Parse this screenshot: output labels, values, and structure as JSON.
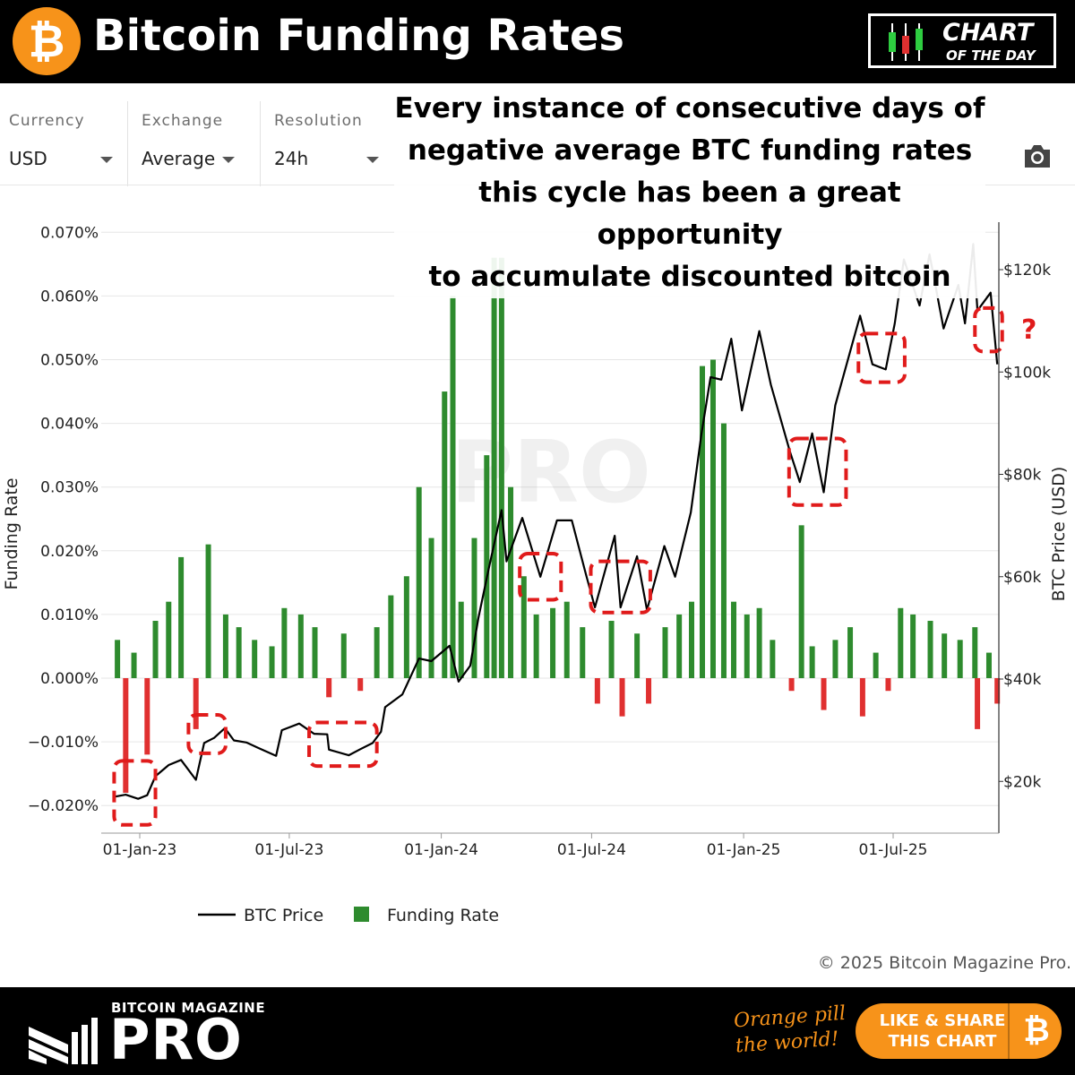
{
  "header": {
    "logo_glyph": "₿",
    "title": "Bitcoin Funding Rates",
    "badge_line1": "CHART",
    "badge_line2": "OF THE DAY",
    "badge_icon": "candlestick-icon"
  },
  "controls": [
    {
      "label": "Currency",
      "value": "USD"
    },
    {
      "label": "Exchange",
      "value": "Average"
    },
    {
      "label": "Resolution",
      "value": "24h"
    }
  ],
  "toolbar": {
    "camera_icon": "camera-icon"
  },
  "headline": {
    "lines": [
      "Every instance of consecutive days of",
      "negative average BTC funding rates",
      "this cycle has been a great opportunity",
      "to accumulate discounted bitcoin"
    ]
  },
  "chart_data": {
    "type": "bar+line",
    "xlabel": "",
    "ylabel": "Funding Rate",
    "y2label": "BTC Price (USD)",
    "x_ticks": [
      "01-Jan-23",
      "01-Jul-23",
      "01-Jan-24",
      "01-Jul-24",
      "01-Jan-25",
      "01-Jul-25"
    ],
    "y_ticks": [
      "0.070%",
      "0.060%",
      "0.050%",
      "0.040%",
      "0.030%",
      "0.020%",
      "0.010%",
      "0.000%",
      "−0.010%",
      "−0.020%"
    ],
    "y2_ticks": [
      "$120k",
      "$100k",
      "$80k",
      "$60k",
      "$40k",
      "$20k"
    ],
    "ylim": [
      -0.021,
      0.07
    ],
    "y2lim": [
      8000,
      128000
    ],
    "xlim": [
      "2022-12-01",
      "2025-11-10"
    ],
    "grid": true,
    "legend_position": "bottom-center",
    "watermark": "BITCOIN MAGAZINE PRO",
    "series": [
      {
        "name": "BTC Price",
        "color": "#000000",
        "axis": "right",
        "points": [
          [
            "2022-12-01",
            17000
          ],
          [
            "2022-12-15",
            17400
          ],
          [
            "2022-12-30",
            16600
          ],
          [
            "2023-01-10",
            17300
          ],
          [
            "2023-01-20",
            21000
          ],
          [
            "2023-02-05",
            23200
          ],
          [
            "2023-02-20",
            24200
          ],
          [
            "2023-03-10",
            20300
          ],
          [
            "2023-03-20",
            27500
          ],
          [
            "2023-04-01",
            28500
          ],
          [
            "2023-04-14",
            30400
          ],
          [
            "2023-04-25",
            28000
          ],
          [
            "2023-05-10",
            27600
          ],
          [
            "2023-05-25",
            26500
          ],
          [
            "2023-06-15",
            25000
          ],
          [
            "2023-06-22",
            30000
          ],
          [
            "2023-07-13",
            31300
          ],
          [
            "2023-07-31",
            29300
          ],
          [
            "2023-08-16",
            29200
          ],
          [
            "2023-08-18",
            26200
          ],
          [
            "2023-09-11",
            25100
          ],
          [
            "2023-09-25",
            26300
          ],
          [
            "2023-10-10",
            27500
          ],
          [
            "2023-10-20",
            29700
          ],
          [
            "2023-10-25",
            34500
          ],
          [
            "2023-11-15",
            37000
          ],
          [
            "2023-12-05",
            44000
          ],
          [
            "2023-12-20",
            43500
          ],
          [
            "2024-01-11",
            46500
          ],
          [
            "2024-01-22",
            39500
          ],
          [
            "2024-02-05",
            42600
          ],
          [
            "2024-02-15",
            52000
          ],
          [
            "2024-02-28",
            62000
          ],
          [
            "2024-03-14",
            73000
          ],
          [
            "2024-03-20",
            63000
          ],
          [
            "2024-04-08",
            71500
          ],
          [
            "2024-04-30",
            60000
          ],
          [
            "2024-05-20",
            71000
          ],
          [
            "2024-06-07",
            71000
          ],
          [
            "2024-06-24",
            60500
          ],
          [
            "2024-07-05",
            54000
          ],
          [
            "2024-07-29",
            68000
          ],
          [
            "2024-08-05",
            54000
          ],
          [
            "2024-08-25",
            64000
          ],
          [
            "2024-09-06",
            53500
          ],
          [
            "2024-09-27",
            66000
          ],
          [
            "2024-10-10",
            60000
          ],
          [
            "2024-10-29",
            72500
          ],
          [
            "2024-11-11",
            88000
          ],
          [
            "2024-11-22",
            99000
          ],
          [
            "2024-12-05",
            98500
          ],
          [
            "2024-12-17",
            106500
          ],
          [
            "2024-12-30",
            92500
          ],
          [
            "2025-01-20",
            108000
          ],
          [
            "2025-02-03",
            97500
          ],
          [
            "2025-02-26",
            84500
          ],
          [
            "2025-03-10",
            78500
          ],
          [
            "2025-03-25",
            88000
          ],
          [
            "2025-04-08",
            76500
          ],
          [
            "2025-04-22",
            93500
          ],
          [
            "2025-05-10",
            104000
          ],
          [
            "2025-05-22",
            111000
          ],
          [
            "2025-06-06",
            101500
          ],
          [
            "2025-06-22",
            100500
          ],
          [
            "2025-07-03",
            109500
          ],
          [
            "2025-07-14",
            122000
          ],
          [
            "2025-08-02",
            113000
          ],
          [
            "2025-08-14",
            123000
          ],
          [
            "2025-08-31",
            108500
          ],
          [
            "2025-09-18",
            117000
          ],
          [
            "2025-09-26",
            109500
          ],
          [
            "2025-10-06",
            125000
          ],
          [
            "2025-10-11",
            112000
          ],
          [
            "2025-10-27",
            115500
          ],
          [
            "2025-11-04",
            101500
          ]
        ]
      },
      {
        "name": "Funding Rate",
        "color": "#2e8b2e",
        "negative_color": "#e03030",
        "axis": "left",
        "points": [
          [
            "2022-12-05",
            0.006
          ],
          [
            "2022-12-15",
            -0.018
          ],
          [
            "2022-12-25",
            0.004
          ],
          [
            "2023-01-10",
            -0.012
          ],
          [
            "2023-01-20",
            0.009
          ],
          [
            "2023-02-05",
            0.012
          ],
          [
            "2023-02-20",
            0.019
          ],
          [
            "2023-03-10",
            -0.008
          ],
          [
            "2023-03-25",
            0.021
          ],
          [
            "2023-04-15",
            0.01
          ],
          [
            "2023-05-01",
            0.008
          ],
          [
            "2023-05-20",
            0.006
          ],
          [
            "2023-06-10",
            0.005
          ],
          [
            "2023-06-25",
            0.011
          ],
          [
            "2023-07-15",
            0.01
          ],
          [
            "2023-08-01",
            0.008
          ],
          [
            "2023-08-18",
            -0.003
          ],
          [
            "2023-09-05",
            0.007
          ],
          [
            "2023-09-25",
            -0.002
          ],
          [
            "2023-10-15",
            0.008
          ],
          [
            "2023-11-01",
            0.013
          ],
          [
            "2023-11-20",
            0.016
          ],
          [
            "2023-12-05",
            0.03
          ],
          [
            "2023-12-20",
            0.022
          ],
          [
            "2024-01-05",
            0.045
          ],
          [
            "2024-01-15",
            0.06
          ],
          [
            "2024-01-25",
            0.012
          ],
          [
            "2024-02-10",
            0.022
          ],
          [
            "2024-02-25",
            0.035
          ],
          [
            "2024-03-05",
            0.066
          ],
          [
            "2024-03-14",
            0.066
          ],
          [
            "2024-03-25",
            0.03
          ],
          [
            "2024-04-10",
            0.016
          ],
          [
            "2024-04-25",
            0.01
          ],
          [
            "2024-05-15",
            0.011
          ],
          [
            "2024-06-01",
            0.012
          ],
          [
            "2024-06-20",
            0.008
          ],
          [
            "2024-07-08",
            -0.004
          ],
          [
            "2024-07-25",
            0.009
          ],
          [
            "2024-08-07",
            -0.006
          ],
          [
            "2024-08-25",
            0.007
          ],
          [
            "2024-09-08",
            -0.004
          ],
          [
            "2024-09-28",
            0.008
          ],
          [
            "2024-10-15",
            0.01
          ],
          [
            "2024-10-30",
            0.012
          ],
          [
            "2024-11-12",
            0.049
          ],
          [
            "2024-11-25",
            0.05
          ],
          [
            "2024-12-08",
            0.04
          ],
          [
            "2024-12-20",
            0.012
          ],
          [
            "2025-01-05",
            0.01
          ],
          [
            "2025-01-20",
            0.011
          ],
          [
            "2025-02-05",
            0.006
          ],
          [
            "2025-02-28",
            -0.002
          ],
          [
            "2025-03-12",
            0.024
          ],
          [
            "2025-03-25",
            0.005
          ],
          [
            "2025-04-08",
            -0.005
          ],
          [
            "2025-04-22",
            0.006
          ],
          [
            "2025-05-10",
            0.008
          ],
          [
            "2025-05-25",
            -0.006
          ],
          [
            "2025-06-10",
            0.004
          ],
          [
            "2025-06-25",
            -0.002
          ],
          [
            "2025-07-10",
            0.011
          ],
          [
            "2025-07-25",
            0.01
          ],
          [
            "2025-08-15",
            0.009
          ],
          [
            "2025-09-01",
            0.007
          ],
          [
            "2025-09-20",
            0.006
          ],
          [
            "2025-10-08",
            0.008
          ],
          [
            "2025-10-11",
            -0.008
          ],
          [
            "2025-10-25",
            0.004
          ],
          [
            "2025-11-04",
            -0.004
          ]
        ]
      }
    ],
    "annotations": [
      {
        "type": "dashed-box",
        "start": "2022-12-01",
        "end": "2023-01-20",
        "y_low": 11500,
        "y_high": 24000
      },
      {
        "type": "dashed-box",
        "start": "2023-03-01",
        "end": "2023-04-15",
        "y_low": 25500,
        "y_high": 33000
      },
      {
        "type": "dashed-box",
        "start": "2023-07-25",
        "end": "2023-10-15",
        "y_low": 23000,
        "y_high": 31500
      },
      {
        "type": "dashed-box",
        "start": "2024-04-05",
        "end": "2024-05-25",
        "y_low": 55500,
        "y_high": 64500
      },
      {
        "type": "dashed-box",
        "start": "2024-06-30",
        "end": "2024-09-10",
        "y_low": 53000,
        "y_high": 63000
      },
      {
        "type": "dashed-box",
        "start": "2025-02-25",
        "end": "2025-05-05",
        "y_low": 74000,
        "y_high": 87000
      },
      {
        "type": "dashed-box",
        "start": "2025-05-20",
        "end": "2025-07-15",
        "y_low": 98000,
        "y_high": 107500
      },
      {
        "type": "dashed-box",
        "start": "2025-10-08",
        "end": "2025-11-10",
        "y_low": 104000,
        "y_high": 112500,
        "label": "?"
      }
    ]
  },
  "legend": {
    "price_label": "BTC Price",
    "funding_label": "Funding Rate"
  },
  "footer": {
    "copyright": "© 2025 Bitcoin Magazine Pro.",
    "brand_top": "BITCOIN MAGAZINE",
    "brand_main": "PRO",
    "slogan": "Orange pill the world!",
    "share_line1": "LIKE & SHARE",
    "share_line2": "THIS CHART",
    "share_icon": "bitcoin-icon",
    "share_glyph": "₿"
  }
}
